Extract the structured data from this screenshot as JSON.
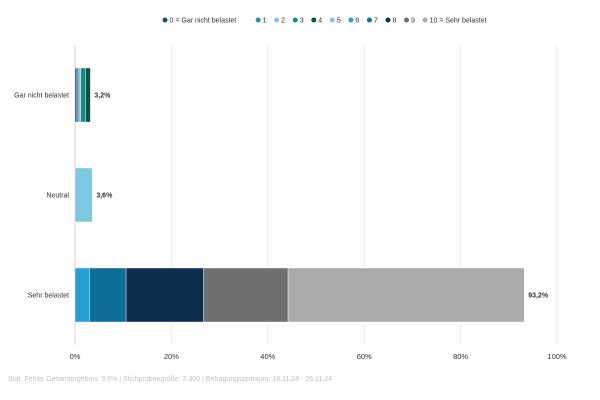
{
  "chart_data": {
    "type": "bar",
    "orientation": "horizontal",
    "stacked": true,
    "categories": [
      "Gar nicht belastet",
      "Neutral",
      "Sehr belastet"
    ],
    "segment_legend": [
      "0 = Gar nicht belastet",
      "1",
      "2",
      "3",
      "4",
      "5",
      "6",
      "7",
      "8",
      "9",
      "10 = Sehr belastet"
    ],
    "segment_colors": [
      "#1b4f72",
      "#2e86c1",
      "#85c1e9",
      "#148f77",
      "#0b5345",
      "#7ec8e3",
      "#2a9fd6",
      "#0e6e99",
      "#0d2d4f",
      "#6f6f6f",
      "#ababab"
    ],
    "series": [
      {
        "name": "0 = Gar nicht belastet",
        "values": [
          0.4,
          0,
          0
        ]
      },
      {
        "name": "1",
        "values": [
          0.4,
          0,
          0
        ]
      },
      {
        "name": "2",
        "values": [
          0.4,
          0,
          0
        ]
      },
      {
        "name": "3",
        "values": [
          1.0,
          0,
          0
        ]
      },
      {
        "name": "4",
        "values": [
          1.0,
          0,
          0
        ]
      },
      {
        "name": "5",
        "values": [
          0,
          3.6,
          0
        ]
      },
      {
        "name": "6",
        "values": [
          0,
          0,
          3.0
        ]
      },
      {
        "name": "7",
        "values": [
          0,
          0,
          7.6
        ]
      },
      {
        "name": "8",
        "values": [
          0,
          0,
          16.0
        ]
      },
      {
        "name": "9",
        "values": [
          0,
          0,
          17.6
        ]
      },
      {
        "name": "10 = Sehr belastet",
        "values": [
          0,
          0,
          49.0
        ]
      }
    ],
    "totals": [
      "3,2%",
      "3,6%",
      "93,2%"
    ],
    "xlim": [
      0,
      100
    ],
    "xticks": [
      0,
      20,
      40,
      60,
      80,
      100
    ],
    "xtick_labels": [
      "0%",
      "20%",
      "40%",
      "60%",
      "80%",
      "100%"
    ],
    "legend_position": "top",
    "grid": "vertical",
    "footnote": "Stat. Fehler Gesamtergebnis: 3,6% | Stichprobengröße: 2.300 | Befragungszeitraum: 18.11.24 - 26.11.24"
  }
}
